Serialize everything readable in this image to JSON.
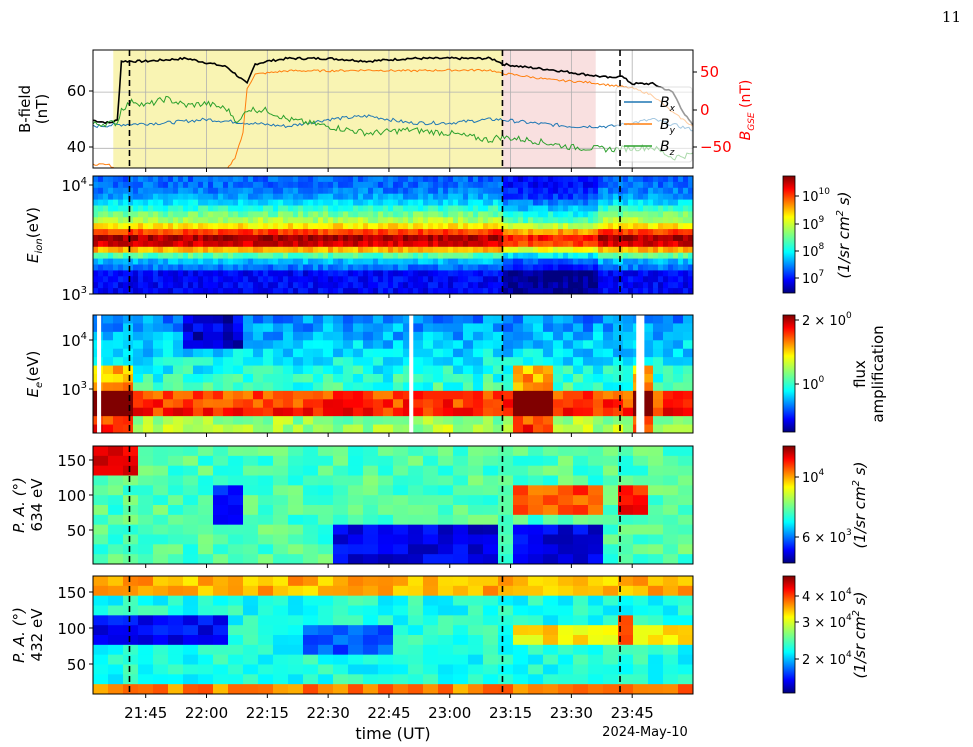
{
  "page_number": "11",
  "colors": {
    "bx": "#1f77b4",
    "by": "#ff7f0e",
    "bz": "#2ca02c",
    "bmag": "#000000",
    "shade_yellow": "#f7f09a",
    "shade_pink": "#f8dada",
    "right_axis": "#ff0000"
  },
  "chart_data": [
    {
      "type": "line",
      "panel": "magnetic-field",
      "ylabel": "B-field\n(nT)",
      "ylim": [
        33,
        75
      ],
      "yticks": [
        40,
        60
      ],
      "right_ylabel": "B_GSE (nT)",
      "right_ylim": [
        -75,
        95
      ],
      "right_yticks": [
        -50,
        0,
        50
      ],
      "xlim_minutes": [
        -28,
        120
      ],
      "grid": true,
      "legend_position": "right",
      "series": [
        {
          "name": "|B|",
          "axis": "left",
          "x": [
            -28,
            -24,
            -22,
            -21,
            -15,
            -5,
            5,
            10,
            12,
            15,
            20,
            30,
            40,
            50,
            60,
            70,
            72,
            73,
            78,
            85,
            90,
            100,
            102,
            105,
            110,
            115,
            118,
            120
          ],
          "y": [
            50,
            49,
            50,
            71,
            71,
            72,
            69,
            63,
            70,
            71,
            72,
            72,
            71,
            72,
            72,
            72,
            71,
            70,
            69,
            68,
            67,
            65,
            66,
            63,
            63,
            60,
            52,
            48
          ]
        },
        {
          "name": "B_x",
          "axis": "right",
          "x": [
            -28,
            -20,
            -10,
            0,
            10,
            20,
            30,
            40,
            50,
            60,
            70,
            72,
            80,
            90,
            100,
            110,
            120
          ],
          "y": [
            -15,
            -12,
            -10,
            -5,
            -10,
            -15,
            -5,
            0,
            -10,
            -10,
            -5,
            -5,
            -10,
            -15,
            -15,
            -5,
            -20
          ]
        },
        {
          "name": "B_y",
          "axis": "right",
          "x": [
            -28,
            -24,
            -22,
            -15,
            -10,
            -5,
            0,
            5,
            7,
            9,
            10,
            12,
            15,
            20,
            30,
            40,
            50,
            60,
            70,
            72,
            75,
            85,
            95,
            105,
            110,
            115,
            120
          ],
          "y": [
            -70,
            -70,
            -80,
            -82,
            -82,
            -80,
            -80,
            -78,
            -60,
            -25,
            40,
            60,
            62,
            65,
            65,
            66,
            65,
            66,
            66,
            62,
            60,
            52,
            48,
            40,
            30,
            5,
            -15
          ]
        },
        {
          "name": "B_z",
          "axis": "right",
          "x": [
            -28,
            -22,
            -21,
            -18,
            -15,
            -10,
            -5,
            0,
            5,
            8,
            10,
            15,
            20,
            30,
            40,
            50,
            60,
            70,
            72,
            80,
            90,
            100,
            110,
            115,
            120
          ],
          "y": [
            -12,
            -10,
            10,
            22,
            15,
            25,
            15,
            18,
            10,
            -10,
            10,
            8,
            -5,
            -15,
            -25,
            -20,
            -25,
            -35,
            -30,
            -35,
            -45,
            -48,
            -45,
            -60,
            -55
          ]
        }
      ],
      "shaded_intervals": [
        {
          "from_minutes": -23,
          "to_minutes": 73,
          "color": "yellow"
        },
        {
          "from_minutes": 73,
          "to_minutes": 96,
          "color": "pink"
        }
      ]
    },
    {
      "type": "heatmap",
      "panel": "ion-spectrogram",
      "ylabel": "E_ion(eV)",
      "yscale": "log",
      "yticklabels": [
        "10^4",
        "10^3"
      ],
      "colorbar": {
        "scale": "log",
        "ticklabels": [
          "10^10",
          "10^9",
          "10^8",
          "10^7"
        ],
        "label": "(1/sr cm^2 s)"
      }
    },
    {
      "type": "heatmap",
      "panel": "electron-spectrogram",
      "ylabel": "E_e(eV)",
      "yscale": "log",
      "yticklabels": [
        "10^4",
        "10^3"
      ],
      "colorbar": {
        "scale": "log",
        "ticklabels": [
          "2 × 10^0",
          "10^0"
        ],
        "label": "flux\namplification"
      }
    },
    {
      "type": "heatmap",
      "panel": "pitch-angle-634eV",
      "ylabel": "P. A. (°)\n634 eV",
      "ylim": [
        5,
        175
      ],
      "yticks": [
        50,
        100,
        150
      ],
      "colorbar": {
        "scale": "log",
        "ticklabels": [
          "10^4",
          "6 × 10^3"
        ],
        "label": "(1/sr cm^2 s)"
      }
    },
    {
      "type": "heatmap",
      "panel": "pitch-angle-432eV",
      "ylabel": "P. A. (°)\n432 eV",
      "ylim": [
        5,
        175
      ],
      "yticks": [
        50,
        100,
        150
      ],
      "colorbar": {
        "scale": "log",
        "ticklabels": [
          "4 × 10^4",
          "3 × 10^4",
          "2 × 10^4"
        ],
        "label": "(1/sr cm^2 s)"
      }
    }
  ],
  "x_axis": {
    "label": "time (UT)",
    "date": "2024-May-10",
    "ticks": [
      "21:45",
      "22:00",
      "22:15",
      "22:30",
      "22:45",
      "23:00",
      "23:15",
      "23:30",
      "23:45"
    ]
  },
  "event_lines": [
    "21:41",
    "23:13",
    "23:42"
  ],
  "labels": {
    "bfield_l1": "B-field",
    "bfield_l2": "(nT)",
    "bgse_main": "B",
    "bgse_sub": "GSE",
    "bgse_unit": " (nT)",
    "eion_main": "E",
    "eion_sub": "ion",
    "eion_unit": "(eV)",
    "ee_main": "E",
    "ee_sub": "e",
    "ee_unit": "(eV)",
    "pa_main": "P. A. (°)",
    "pa1_energy": "634 eV",
    "pa2_energy": "432 eV",
    "leg_bx": "B",
    "leg_bx_sub": "x",
    "leg_by": "B",
    "leg_by_sub": "y",
    "leg_bz": "B",
    "leg_bz_sub": "z",
    "bl_60": "60",
    "bl_40": "40",
    "br_50": "50",
    "br_0": "0",
    "br_m50": "−50",
    "ion_1e4_base": "10",
    "ion_1e4_exp": "4",
    "ion_1e3_base": "10",
    "ion_1e3_exp": "3",
    "ee_1e4_base": "10",
    "ee_1e4_exp": "4",
    "ee_1e3_base": "10",
    "ee_1e3_exp": "3",
    "pa_150": "150",
    "pa_100": "100",
    "pa_50": "50",
    "cb_ion": [
      [
        "10",
        "10"
      ],
      [
        "10",
        "9"
      ],
      [
        "10",
        "8"
      ],
      [
        "10",
        "7"
      ]
    ],
    "cb_ion_label": "(1/sr cm",
    "cb_ion_sup": "2",
    "cb_ion_label2": " s)",
    "cb_e_2": "2 × 10",
    "cb_e_2_exp": "0",
    "cb_e_1": "10",
    "cb_e_1_exp": "0",
    "cb_e_label1": "flux",
    "cb_e_label2": "amplification",
    "cb_pa1_top": "10",
    "cb_pa1_top_exp": "4",
    "cb_pa1_bot": "6 × 10",
    "cb_pa1_bot_exp": "3",
    "cb_pa2_a": "4 × 10",
    "cb_pa2_a_exp": "4",
    "cb_pa2_b": "3 × 10",
    "cb_pa2_b_exp": "4",
    "cb_pa2_c": "2 × 10",
    "cb_pa2_c_exp": "4"
  }
}
